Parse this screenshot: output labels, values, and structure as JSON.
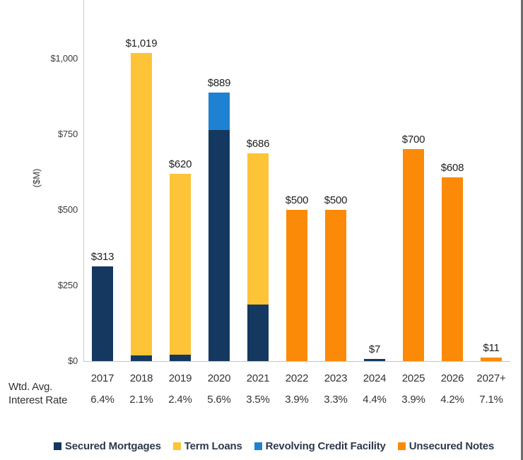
{
  "chart_data": {
    "type": "bar",
    "stacked": true,
    "title": "",
    "xlabel": "",
    "ylabel": "($M)",
    "ylim": [
      0,
      1200
    ],
    "grid": false,
    "legend_position": "bottom",
    "categories": [
      "2017",
      "2018",
      "2019",
      "2020",
      "2021",
      "2022",
      "2023",
      "2024",
      "2025",
      "2026",
      "2027+"
    ],
    "totals_labels": [
      "$313",
      "$1,019",
      "$620",
      "$889",
      "$686",
      "$500",
      "$500",
      "$7",
      "$700",
      "$608",
      "$11"
    ],
    "series": [
      {
        "name": "Secured Mortgages",
        "color": "#14385f",
        "values": [
          313,
          19,
          20,
          765,
          186,
          0,
          0,
          7,
          0,
          0,
          0
        ]
      },
      {
        "name": "Term Loans",
        "color": "#fdc437",
        "values": [
          0,
          1000,
          600,
          0,
          500,
          0,
          0,
          0,
          0,
          0,
          0
        ]
      },
      {
        "name": "Revolving Credit Facility",
        "color": "#1e81d2",
        "values": [
          0,
          0,
          0,
          124,
          0,
          0,
          0,
          0,
          0,
          0,
          0
        ]
      },
      {
        "name": "Unsecured Notes",
        "color": "#fb8a08",
        "values": [
          0,
          0,
          0,
          0,
          0,
          500,
          500,
          0,
          700,
          608,
          11
        ]
      }
    ],
    "yticks": [
      {
        "label": "$1,000",
        "value": 1000
      },
      {
        "label": "$750",
        "value": 750
      },
      {
        "label": "$500",
        "value": 500
      },
      {
        "label": "$250",
        "value": 250
      },
      {
        "label": "$0",
        "value": 0
      }
    ]
  },
  "secondary_row": {
    "label_line1": "Wtd. Avg.",
    "label_line2": "Interest Rate",
    "values": [
      "6.4%",
      "2.1%",
      "2.4%",
      "5.6%",
      "3.5%",
      "3.9%",
      "3.3%",
      "4.4%",
      "3.9%",
      "4.2%",
      "7.1%"
    ]
  }
}
